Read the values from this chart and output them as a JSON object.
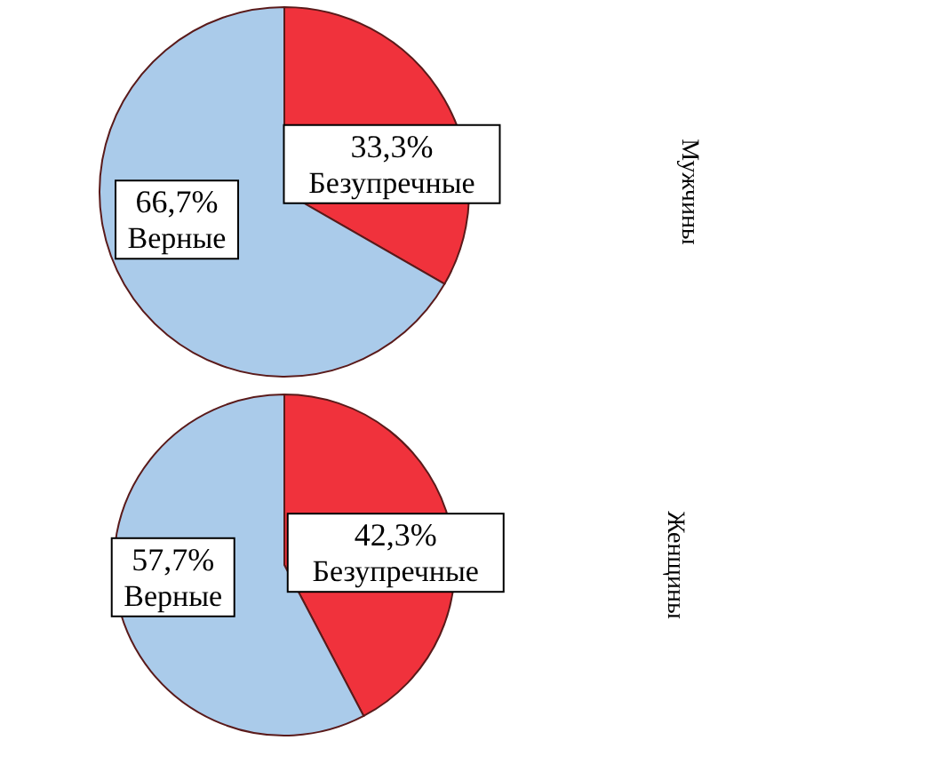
{
  "chart_data": [
    {
      "type": "pie",
      "title": "Мужчины",
      "categories": [
        "Безупречные",
        "Верные"
      ],
      "values": [
        33.3,
        66.7
      ],
      "colors": [
        "#f0323c",
        "#aacbea"
      ],
      "value_labels": [
        "33,3%",
        "66,7%"
      ]
    },
    {
      "type": "pie",
      "title": "Женщины",
      "categories": [
        "Безупречные",
        "Верные"
      ],
      "values": [
        42.3,
        57.7
      ],
      "colors": [
        "#f0323c",
        "#aacbea"
      ],
      "value_labels": [
        "42,3%",
        "57,7%"
      ]
    }
  ]
}
